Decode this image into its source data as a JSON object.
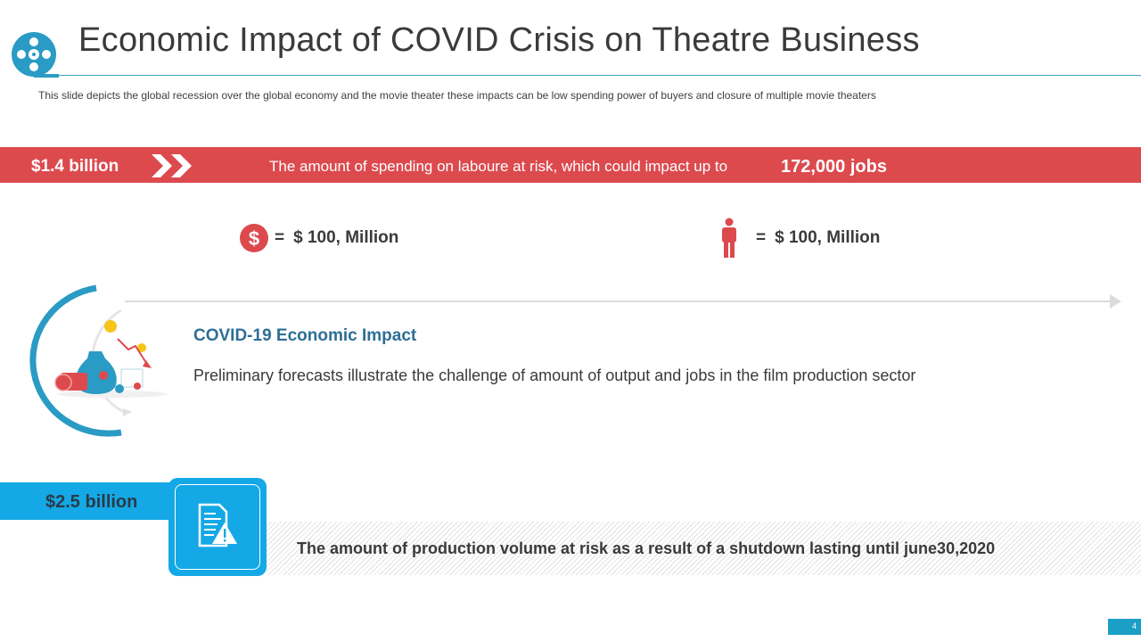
{
  "header": {
    "title": "Economic Impact of COVID Crisis on Theatre Business",
    "subtitle": "This slide depicts the global recession over the global economy and the movie theater these impacts can be low spending power of buyers and closure of multiple movie  theaters",
    "logo_icon": "film-reel-icon"
  },
  "band_top": {
    "amount": "$1.4 billion",
    "text": "The amount of spending on laboure at risk, which could impact up to",
    "jobs": "172,000 jobs",
    "color": "#dc4a4e"
  },
  "legend": [
    {
      "icon": "dollar-coin-icon",
      "equals": "=",
      "label": "$ 100, Million"
    },
    {
      "icon": "person-icon",
      "equals": "=",
      "label": "$ 100, Million"
    }
  ],
  "impact": {
    "title": "COVID-19  Economic Impact",
    "description": "Preliminary forecasts illustrate the challenge of amount of output and jobs in the film production sector",
    "title_color": "#2e6e96"
  },
  "band_bottom": {
    "amount": "$2.5 billion",
    "text": "The amount of production volume at risk as a result of a shutdown lasting until june30,2020",
    "color": "#14a9e6",
    "icon": "document-warning-icon"
  },
  "footer": {
    "page_number": "4"
  }
}
